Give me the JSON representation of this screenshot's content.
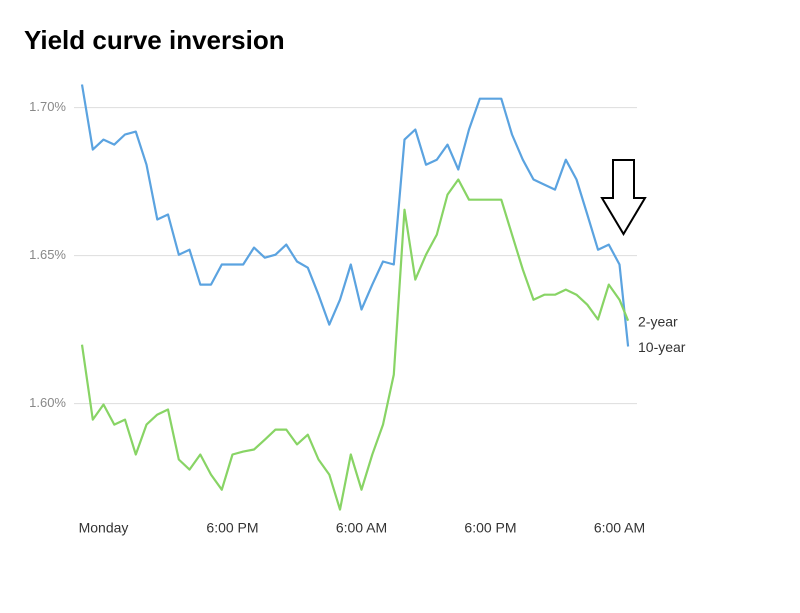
{
  "chart_data": {
    "type": "line",
    "title": "Yield curve inversion",
    "x": [
      0,
      1,
      2,
      3,
      4,
      5,
      6,
      7,
      8,
      9,
      10,
      11,
      12,
      13,
      14,
      15,
      16,
      17,
      18,
      19,
      20,
      21,
      22,
      23,
      24,
      25,
      26,
      27,
      28,
      29,
      30,
      31,
      32,
      33,
      34,
      35,
      36,
      37,
      38,
      39,
      40,
      41,
      42,
      43,
      44,
      45,
      46,
      47,
      48,
      49,
      50,
      50.8
    ],
    "series": [
      {
        "name": "10-year",
        "color": "#5ba3e0",
        "values": [
          1.7078,
          1.6858,
          1.6892,
          1.6875,
          1.6909,
          1.6919,
          1.6807,
          1.6622,
          1.6639,
          1.6503,
          1.652,
          1.6402,
          1.6402,
          1.647,
          1.647,
          1.647,
          1.6527,
          1.6493,
          1.6503,
          1.6537,
          1.648,
          1.6459,
          1.6368,
          1.6267,
          1.6351,
          1.647,
          1.6318,
          1.6402,
          1.648,
          1.647,
          1.6892,
          1.6926,
          1.6807,
          1.6824,
          1.6875,
          1.6791,
          1.6926,
          1.703,
          1.703,
          1.703,
          1.6909,
          1.6824,
          1.6757,
          1.674,
          1.6723,
          1.6824,
          1.6757,
          1.6639,
          1.652,
          1.6537,
          1.647,
          1.6193
        ]
      },
      {
        "name": "2-year",
        "color": "#88d465",
        "values": [
          1.6199,
          1.5946,
          1.5997,
          1.5929,
          1.5946,
          1.5828,
          1.5929,
          1.5963,
          1.598,
          1.5811,
          1.5777,
          1.5828,
          1.576,
          1.5709,
          1.5828,
          1.5838,
          1.5845,
          1.5878,
          1.5912,
          1.5912,
          1.5862,
          1.5895,
          1.5811,
          1.576,
          1.5642,
          1.5828,
          1.5709,
          1.5828,
          1.5929,
          1.6098,
          1.6655,
          1.6419,
          1.6503,
          1.6571,
          1.6706,
          1.6757,
          1.6689,
          1.6689,
          1.6689,
          1.6689,
          1.6571,
          1.6453,
          1.6351,
          1.6368,
          1.6368,
          1.6385,
          1.6368,
          1.6334,
          1.6284,
          1.6402,
          1.6351,
          1.628
        ]
      }
    ],
    "xlim": [
      0,
      52
    ],
    "xticks": [
      {
        "value": 2,
        "label": "Monday"
      },
      {
        "value": 14,
        "label": "6:00 PM"
      },
      {
        "value": 26,
        "label": "6:00 AM"
      },
      {
        "value": 38,
        "label": "6:00 PM"
      },
      {
        "value": 50,
        "label": "6:00 AM"
      }
    ],
    "ylim": [
      1.56,
      1.71
    ],
    "yticks": [
      {
        "value": 1.6,
        "label": "1.60%"
      },
      {
        "value": 1.65,
        "label": "1.65%"
      },
      {
        "value": 1.7,
        "label": "1.70%"
      }
    ],
    "grid": true
  }
}
